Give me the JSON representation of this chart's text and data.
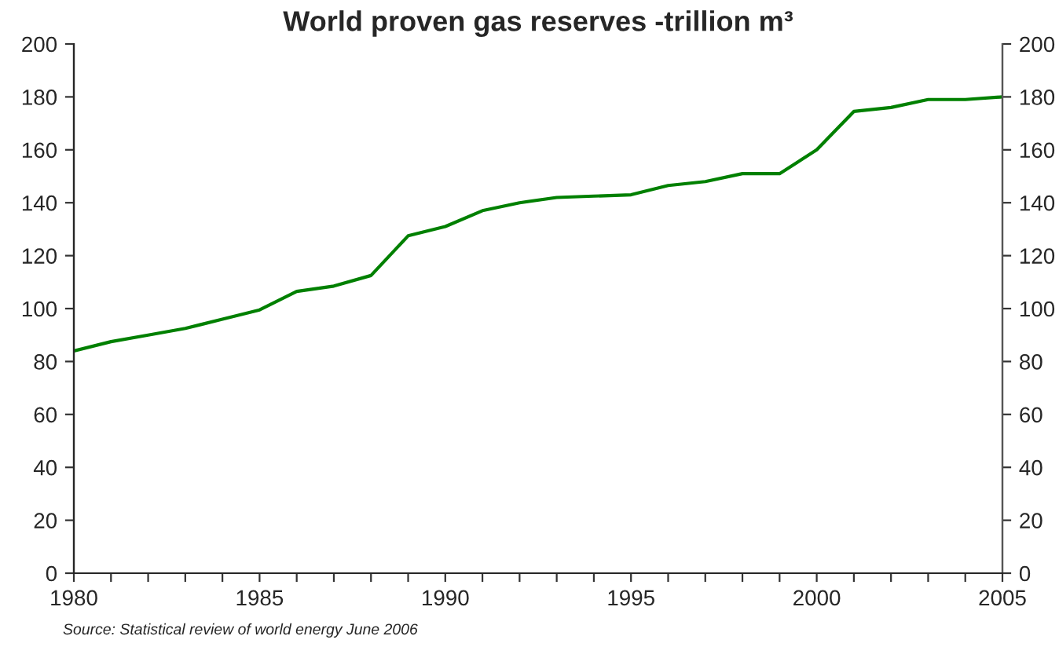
{
  "chart_data": {
    "type": "line",
    "title": "World proven gas reserves -trillion m³",
    "x": [
      1980,
      1981,
      1982,
      1983,
      1984,
      1985,
      1986,
      1987,
      1988,
      1989,
      1990,
      1991,
      1992,
      1993,
      1994,
      1995,
      1996,
      1997,
      1998,
      1999,
      2000,
      2001,
      2002,
      2003,
      2004,
      2005
    ],
    "series": [
      {
        "color": "#008000",
        "values": [
          84,
          87.5,
          90,
          92.5,
          96,
          99.5,
          106.5,
          108.5,
          112.5,
          127.5,
          131,
          137,
          140,
          142,
          142.5,
          143,
          146.5,
          148,
          151,
          151,
          160,
          174.5,
          176,
          179,
          179,
          180
        ]
      }
    ],
    "xlim": [
      1980,
      2005
    ],
    "xticks": [
      1980,
      {
        "value": 1981,
        "label": null
      },
      {
        "value": 1982,
        "label": null
      },
      {
        "value": 1983,
        "label": null
      },
      {
        "value": 1984,
        "label": null
      },
      1985,
      {
        "value": 1986,
        "label": null
      },
      {
        "value": 1987,
        "label": null
      },
      {
        "value": 1988,
        "label": null
      },
      {
        "value": 1989,
        "label": null
      },
      1990,
      {
        "value": 1991,
        "label": null
      },
      {
        "value": 1992,
        "label": null
      },
      {
        "value": 1993,
        "label": null
      },
      {
        "value": 1994,
        "label": null
      },
      1995,
      {
        "value": 1996,
        "label": null
      },
      {
        "value": 1997,
        "label": null
      },
      {
        "value": 1998,
        "label": null
      },
      {
        "value": 1999,
        "label": null
      },
      2000,
      {
        "value": 2001,
        "label": null
      },
      {
        "value": 2002,
        "label": null
      },
      {
        "value": 2003,
        "label": null
      },
      {
        "value": 2004,
        "label": null
      },
      2005
    ],
    "ylim": [
      0,
      200
    ],
    "yticks": [
      0,
      20,
      40,
      60,
      80,
      100,
      120,
      140,
      160,
      180,
      200
    ],
    "y2lim": [
      0,
      200
    ],
    "y2ticks": [
      0,
      20,
      40,
      60,
      80,
      100,
      120,
      140,
      160,
      180,
      200
    ],
    "grid": false,
    "marker": "none",
    "line_style": "solid",
    "annotations": [
      "Source: Statistical review of world energy June 2006"
    ]
  }
}
